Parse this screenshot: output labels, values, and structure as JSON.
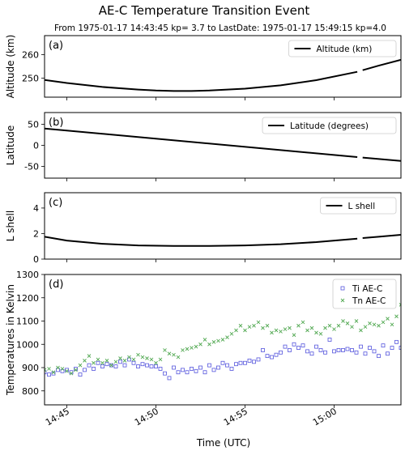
{
  "figure": {
    "title": "AE-C Temperature Transition Event",
    "subtitle": "From 1975-01-17 14:43:45 kp= 3.7 to LastDate: 1975-01-17 15:49:15 kp=4.0",
    "xlabel": "Time (UTC)",
    "xticks": [
      "14:45",
      "14:50",
      "14:55",
      "15:00"
    ],
    "xtick_minutes": [
      45,
      50,
      55,
      60
    ],
    "xlim_minutes": [
      43.75,
      63.75
    ]
  },
  "chart_data": [
    {
      "type": "line",
      "panel_label": "(a)",
      "ylabel": "Altitude (km)",
      "ylim": [
        242,
        268
      ],
      "yticks": [
        250,
        260
      ],
      "legend": "top-right",
      "series": [
        {
          "name": "Altitude (km)",
          "color": "#000000",
          "segments": [
            {
              "x": [
                43.75,
                45,
                47,
                49,
                50,
                51,
                52,
                53,
                55,
                57,
                59,
                61.3
              ],
              "y": [
                249.3,
                248.0,
                246.3,
                245.2,
                244.8,
                244.6,
                244.6,
                244.8,
                245.6,
                247.0,
                249.2,
                252.7
              ]
            },
            {
              "x": [
                61.6,
                62.5,
                63.75
              ],
              "y": [
                253.4,
                255.3,
                257.8
              ]
            }
          ]
        }
      ]
    },
    {
      "type": "line",
      "panel_label": "(b)",
      "ylabel": "Latitude",
      "ylim": [
        -78,
        78
      ],
      "yticks": [
        -50,
        0,
        50
      ],
      "legend": "top-right",
      "series": [
        {
          "name": "Latitude (degrees)",
          "color": "#000000",
          "segments": [
            {
              "x": [
                43.75,
                61.3
              ],
              "y": [
                40,
                -28
              ]
            },
            {
              "x": [
                61.6,
                63.75
              ],
              "y": [
                -29,
                -37
              ]
            }
          ]
        }
      ]
    },
    {
      "type": "line",
      "panel_label": "(c)",
      "ylabel": "L shell",
      "ylim": [
        0,
        5.2
      ],
      "yticks": [
        0,
        2,
        4
      ],
      "legend": "top-right",
      "series": [
        {
          "name": "L shell",
          "color": "#000000",
          "segments": [
            {
              "x": [
                43.75,
                45,
                47,
                49,
                51,
                53,
                55,
                57,
                59,
                61.3
              ],
              "y": [
                1.75,
                1.45,
                1.2,
                1.07,
                1.03,
                1.03,
                1.07,
                1.17,
                1.33,
                1.6
              ]
            },
            {
              "x": [
                61.6,
                62.5,
                63.75
              ],
              "y": [
                1.65,
                1.75,
                1.9
              ]
            }
          ]
        }
      ]
    },
    {
      "type": "scatter",
      "panel_label": "(d)",
      "ylabel": "Temperatures in Kelvin",
      "ylim": [
        740,
        1300
      ],
      "yticks": [
        800,
        900,
        1000,
        1100,
        1200,
        1300
      ],
      "legend": "top-right",
      "series": [
        {
          "name": "Ti AE-C",
          "color": "#5555dd",
          "marker": "square",
          "x": [
            43.75,
            44.0,
            44.25,
            44.5,
            44.75,
            45.0,
            45.25,
            45.5,
            45.75,
            46.0,
            46.25,
            46.5,
            46.75,
            47.0,
            47.25,
            47.5,
            47.75,
            48.0,
            48.25,
            48.5,
            48.75,
            49.0,
            49.25,
            49.5,
            49.75,
            50.0,
            50.25,
            50.5,
            50.75,
            51.0,
            51.25,
            51.5,
            51.75,
            52.0,
            52.25,
            52.5,
            52.75,
            53.0,
            53.25,
            53.5,
            53.75,
            54.0,
            54.25,
            54.5,
            54.75,
            55.0,
            55.25,
            55.5,
            55.75,
            56.0,
            56.25,
            56.5,
            56.75,
            57.0,
            57.25,
            57.5,
            57.75,
            58.0,
            58.25,
            58.5,
            58.75,
            59.0,
            59.25,
            59.5,
            59.75,
            60.0,
            60.25,
            60.5,
            60.75,
            61.0,
            61.25,
            61.5,
            61.75,
            62.0,
            62.25,
            62.5,
            62.75,
            63.0,
            63.25,
            63.5,
            63.75
          ],
          "y": [
            880,
            870,
            875,
            890,
            885,
            890,
            880,
            895,
            870,
            890,
            910,
            895,
            920,
            905,
            915,
            910,
            905,
            925,
            910,
            935,
            920,
            905,
            915,
            910,
            905,
            905,
            895,
            875,
            855,
            900,
            880,
            890,
            880,
            895,
            885,
            900,
            880,
            910,
            890,
            900,
            920,
            910,
            895,
            915,
            920,
            920,
            930,
            925,
            935,
            975,
            950,
            945,
            955,
            965,
            990,
            975,
            1000,
            985,
            995,
            970,
            960,
            990,
            975,
            965,
            1020,
            970,
            975,
            975,
            980,
            975,
            965,
            990,
            960,
            985,
            970,
            950,
            995,
            960,
            985,
            1010,
            985
          ]
        },
        {
          "name": "Tn AE-C",
          "color": "#55aa55",
          "marker": "x",
          "x": [
            43.75,
            44.0,
            44.25,
            44.5,
            44.75,
            45.0,
            45.25,
            45.5,
            45.75,
            46.0,
            46.25,
            46.5,
            46.75,
            47.0,
            47.25,
            47.5,
            47.75,
            48.0,
            48.25,
            48.5,
            48.75,
            49.0,
            49.25,
            49.5,
            49.75,
            50.0,
            50.25,
            50.5,
            50.75,
            51.0,
            51.25,
            51.5,
            51.75,
            52.0,
            52.25,
            52.5,
            52.75,
            53.0,
            53.25,
            53.5,
            53.75,
            54.0,
            54.25,
            54.5,
            54.75,
            55.0,
            55.25,
            55.5,
            55.75,
            56.0,
            56.25,
            56.5,
            56.75,
            57.0,
            57.25,
            57.5,
            57.75,
            58.0,
            58.25,
            58.5,
            58.75,
            59.0,
            59.25,
            59.5,
            59.75,
            60.0,
            60.25,
            60.5,
            60.75,
            61.0,
            61.25,
            61.5,
            61.75,
            62.0,
            62.25,
            62.5,
            62.75,
            63.0,
            63.25,
            63.5,
            63.75
          ],
          "y": [
            890,
            895,
            880,
            900,
            895,
            885,
            875,
            890,
            910,
            930,
            950,
            920,
            935,
            920,
            930,
            910,
            925,
            940,
            930,
            945,
            935,
            955,
            945,
            940,
            935,
            920,
            935,
            975,
            960,
            955,
            945,
            975,
            980,
            985,
            990,
            1000,
            1020,
            1000,
            1010,
            1015,
            1020,
            1030,
            1045,
            1060,
            1080,
            1060,
            1075,
            1080,
            1095,
            1070,
            1080,
            1050,
            1060,
            1055,
            1065,
            1070,
            1040,
            1080,
            1095,
            1060,
            1070,
            1050,
            1045,
            1070,
            1080,
            1065,
            1080,
            1100,
            1090,
            1075,
            1100,
            1060,
            1075,
            1090,
            1085,
            1080,
            1095,
            1110,
            1085,
            1120,
            1170
          ]
        }
      ]
    }
  ]
}
